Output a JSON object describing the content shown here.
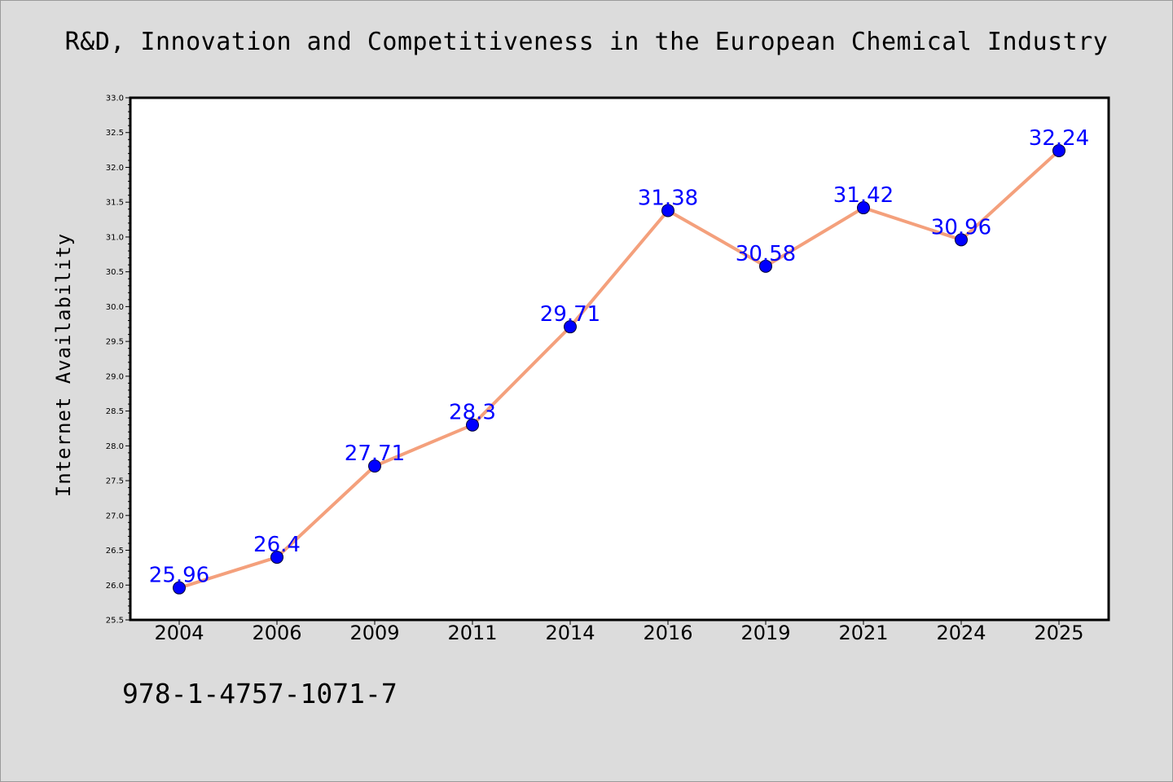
{
  "chart_data": {
    "type": "line",
    "title": "R&D, Innovation and Competitiveness in the European Chemical Industry",
    "xlabel": "",
    "ylabel": "Internet Availability",
    "categories": [
      "2004",
      "2006",
      "2009",
      "2011",
      "2014",
      "2016",
      "2019",
      "2021",
      "2024",
      "2025"
    ],
    "values": [
      25.96,
      26.4,
      27.71,
      28.3,
      29.71,
      31.38,
      30.58,
      31.42,
      30.96,
      32.24
    ],
    "data_labels": [
      "25.96",
      "26.4",
      "27.71",
      "28.3",
      "29.71",
      "31.38",
      "30.58",
      "31.42",
      "30.96",
      "32.24"
    ],
    "ylim": [
      25.5,
      33.0
    ],
    "yticks": [
      "25.5",
      "26.0",
      "26.5",
      "27.0",
      "27.5",
      "28.0",
      "28.5",
      "29.0",
      "29.5",
      "30.0",
      "30.5",
      "31.0",
      "31.5",
      "32.0",
      "32.5",
      "33.0"
    ],
    "grid": false,
    "legend": "none",
    "colors": {
      "line": "#f4a07c",
      "marker": "#0000ff",
      "label": "#0000ff",
      "plot_background": "#ffffff",
      "figure_background": "#dcdcdc"
    }
  },
  "footer": {
    "isbn": "978-1-4757-1071-7"
  }
}
